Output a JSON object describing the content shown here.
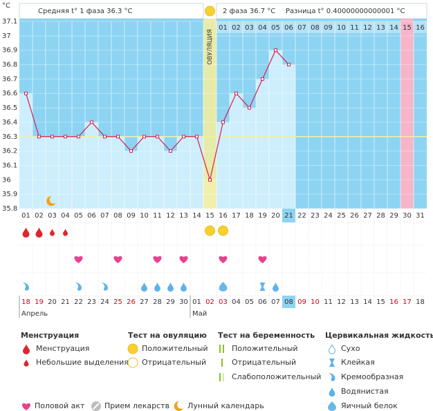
{
  "chart_data": {
    "type": "line",
    "unit": "°C",
    "header": {
      "phase1": "Средняя t° 1 фаза 36.3 °C",
      "phase2": "2 фаза 36.7 °C",
      "difference": "Разница t° 0.40000000000001 °C"
    },
    "categories": [
      "01",
      "02",
      "03",
      "04",
      "05",
      "06",
      "07",
      "08",
      "09",
      "10",
      "11",
      "12",
      "13",
      "14",
      "15",
      "16",
      "17",
      "18",
      "19",
      "20",
      "21",
      "22",
      "23",
      "24",
      "25",
      "26",
      "27",
      "28",
      "29",
      "30",
      "31"
    ],
    "phase2_days": [
      null,
      null,
      null,
      null,
      null,
      null,
      null,
      null,
      null,
      null,
      null,
      null,
      null,
      null,
      null,
      "01",
      "02",
      "03",
      "04",
      "05",
      "06",
      "07",
      "08",
      "09",
      "10",
      "11",
      "12",
      "13",
      "14",
      "15",
      "16"
    ],
    "values": [
      36.6,
      36.3,
      36.3,
      36.3,
      36.3,
      36.4,
      36.3,
      36.3,
      36.2,
      36.3,
      36.3,
      36.2,
      36.3,
      36.3,
      36.0,
      36.4,
      36.6,
      36.5,
      36.7,
      36.9,
      36.8,
      null,
      null,
      null,
      null,
      null,
      null,
      null,
      null,
      null,
      null
    ],
    "color": "#d81b50",
    "bar_color": "#cdeefc",
    "plot_color": "#8dd4f3",
    "ylim": [
      35.8,
      37.1
    ],
    "yticks": [
      35.8,
      35.9,
      36,
      36.1,
      36.2,
      36.3,
      36.4,
      36.5,
      36.6,
      36.7,
      36.8,
      36.9,
      37,
      37.1
    ],
    "coverline": 36.3,
    "ovulation": {
      "day": 15,
      "label": "ОВУЛЯЦИЯ"
    },
    "today_day": 21,
    "expected_period_day": 30,
    "dates": [
      "18",
      "19",
      "20",
      "21",
      "22",
      "23",
      "24",
      "25",
      "26",
      "27",
      "28",
      "29",
      "30",
      "01",
      "02",
      "03",
      "04",
      "05",
      "06",
      "07",
      "08",
      "09",
      "10",
      "11",
      "12",
      "13",
      "14",
      "15",
      "16",
      "17",
      "18"
    ],
    "red_date_indexes": [
      0,
      1,
      7,
      8,
      14,
      15,
      21,
      22,
      28,
      29
    ],
    "months": [
      {
        "label": "Апрель",
        "day": 1
      },
      {
        "label": "Май",
        "day": 14
      }
    ],
    "lunar_days": [
      3
    ],
    "menstruation": [
      {
        "day": 1,
        "kind": 0
      },
      {
        "day": 2,
        "kind": 0
      },
      {
        "day": 3,
        "kind": 1
      },
      {
        "day": 4,
        "kind": 1
      }
    ],
    "ovulation_tests": [
      {
        "day": 15,
        "kind": 0
      },
      {
        "day": 16,
        "kind": 0
      }
    ],
    "sex_days": [
      5,
      8,
      11,
      13,
      16,
      19
    ],
    "cervical_fluid": [
      {
        "day": 1,
        "kind": 2
      },
      {
        "day": 5,
        "kind": 2
      },
      {
        "day": 7,
        "kind": 2
      },
      {
        "day": 10,
        "kind": 3
      },
      {
        "day": 11,
        "kind": 3
      },
      {
        "day": 12,
        "kind": 3
      },
      {
        "day": 13,
        "kind": 3
      },
      {
        "day": 16,
        "kind": 4
      },
      {
        "day": 19,
        "kind": 1
      },
      {
        "day": 20,
        "kind": 3
      }
    ],
    "legend": {
      "menstruation": {
        "title": "Менструация",
        "items": [
          "Менструация",
          "Небольшие выделения"
        ]
      },
      "ovulation_test": {
        "title": "Тест на овуляцию",
        "items": [
          "Положительный",
          "Отрицательный"
        ]
      },
      "pregnancy_test": {
        "title": "Тест на беременность",
        "items": [
          "Положительный",
          "Отрицательный",
          "Слабоположительный"
        ]
      },
      "cervical_fluid": {
        "title": "Цервикальная жидкость",
        "items": [
          "Сухо",
          "Клейкая",
          "Кремообразная",
          "Водянистая",
          "Яичный белок"
        ]
      },
      "other": [
        "Половой акт",
        "Прием лекарств",
        "Лунный календарь"
      ]
    }
  }
}
